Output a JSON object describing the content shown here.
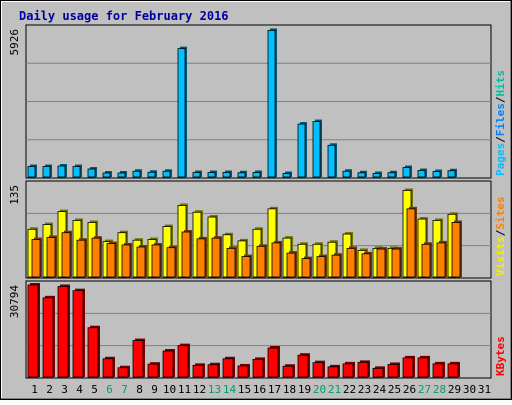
{
  "chart_data": {
    "type": "bar",
    "title": "Daily usage for February 2016",
    "x": [
      "1",
      "2",
      "3",
      "4",
      "5",
      "6",
      "7",
      "8",
      "9",
      "10",
      "11",
      "12",
      "13",
      "14",
      "15",
      "16",
      "17",
      "18",
      "19",
      "20",
      "21",
      "22",
      "23",
      "24",
      "25",
      "26",
      "27",
      "28",
      "29",
      "30",
      "31"
    ],
    "weekend_days": [
      "6",
      "7",
      "13",
      "14",
      "20",
      "21",
      "27",
      "28"
    ],
    "grid": true,
    "panels": [
      {
        "id": "top",
        "ymax_label": "5926",
        "ylim": [
          0,
          5926
        ],
        "legend": [
          "Pages",
          "/",
          "Files",
          "/",
          "Hits"
        ],
        "legend_colors": [
          "#00c0ff",
          "#000000",
          "#0080ff",
          "#000000",
          "#00c0a0"
        ],
        "series": [
          {
            "name": "Pages",
            "color": "#00c0ff",
            "values": [
              420,
              420,
              440,
              420,
              320,
              160,
              160,
              230,
              190,
              230,
              5140,
              180,
              180,
              180,
              170,
              180,
              5870,
              140,
              2120,
              2220,
              1270,
              230,
              170,
              140,
              170,
              380,
              260,
              220,
              250,
              0,
              0
            ]
          },
          {
            "name": "Files",
            "color": "#0080ff",
            "values": [
              0,
              0,
              0,
              0,
              0,
              0,
              0,
              0,
              0,
              0,
              0,
              0,
              0,
              0,
              0,
              0,
              0,
              0,
              0,
              0,
              0,
              0,
              0,
              0,
              0,
              0,
              0,
              0,
              0,
              0,
              0
            ]
          },
          {
            "name": "Hits",
            "color": "#00c0a0",
            "values": [
              0,
              0,
              0,
              0,
              0,
              0,
              0,
              0,
              0,
              0,
              0,
              0,
              0,
              0,
              0,
              0,
              0,
              0,
              0,
              0,
              0,
              0,
              0,
              0,
              0,
              0,
              0,
              0,
              0,
              0,
              0
            ]
          }
        ]
      },
      {
        "id": "middle",
        "ymax_label": "135",
        "ylim": [
          0,
          135
        ],
        "legend": [
          "Visits",
          "/",
          "Sites"
        ],
        "legend_colors": [
          "#f0f000",
          "#000000",
          "#ff8000"
        ],
        "series": [
          {
            "name": "Visits",
            "color": "#ffff00",
            "values": [
              70,
              77,
              96,
              83,
              80,
              52,
              65,
              54,
              55,
              74,
              105,
              95,
              88,
              62,
              53,
              70,
              100,
              57,
              48,
              48,
              51,
              63,
              39,
              42,
              42,
              127,
              85,
              83,
              92,
              0,
              0
            ]
          },
          {
            "name": "Sites",
            "color": "#ff8000",
            "values": [
              55,
              58,
              65,
              54,
              57,
              49,
              47,
              44,
              47,
              43,
              66,
              56,
              57,
              42,
              30,
              45,
              50,
              35,
              27,
              30,
              32,
              42,
              34,
              41,
              41,
              100,
              48,
              50,
              80,
              0,
              0
            ]
          }
        ]
      },
      {
        "id": "bottom",
        "ymax_label": "30794",
        "ylim": [
          0,
          30794
        ],
        "legend": [
          "KBytes"
        ],
        "legend_colors": [
          "#ff0000"
        ],
        "series": [
          {
            "name": "KBytes",
            "color": "#ff0000",
            "values": [
              30794,
              26500,
              30300,
              28900,
              16500,
              6100,
              3100,
              12200,
              4300,
              8700,
              10500,
              3900,
              4100,
              6100,
              3700,
              5900,
              9700,
              3600,
              7300,
              4800,
              3400,
              4400,
              4900,
              2900,
              4200,
              6400,
              6400,
              4400,
              4400,
              0,
              0
            ]
          }
        ]
      }
    ]
  }
}
